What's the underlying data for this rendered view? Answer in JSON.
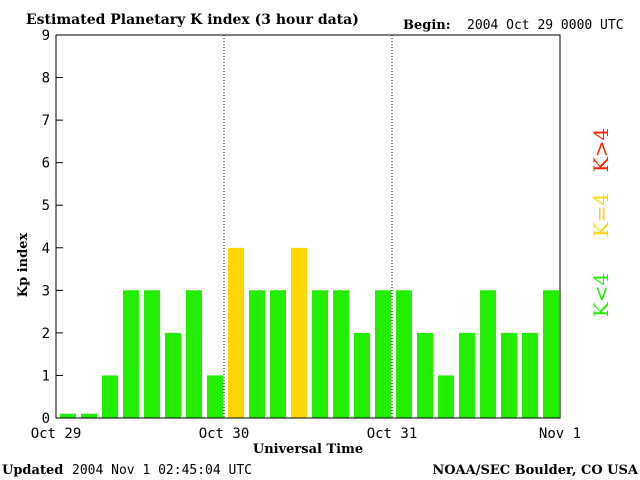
{
  "header": {
    "title": "Estimated Planetary K index (3 hour data)",
    "begin_label": "Begin:",
    "begin_value": "2004 Oct 29 0000 UTC"
  },
  "footer": {
    "updated_label": "Updated",
    "updated_value": "2004 Nov  1 02:45:04 UTC",
    "credit": "NOAA/SEC Boulder, CO USA"
  },
  "legend": {
    "below": "K<4",
    "equal": "K=4",
    "above": "K>4"
  },
  "colors": {
    "below": "#22ee00",
    "equal": "#ffd700",
    "above": "#ff2200",
    "axis": "#000000"
  },
  "chart_data": {
    "type": "bar",
    "xlabel": "Universal Time",
    "ylabel": "Kp index",
    "ylim": [
      0,
      9
    ],
    "yticks": [
      "0",
      "1",
      "2",
      "3",
      "4",
      "5",
      "6",
      "7",
      "8",
      "9"
    ],
    "xticks": [
      "Oct 29",
      "Oct 30",
      "Oct 31",
      "Nov 1"
    ],
    "day_dividers": [
      "Oct 30",
      "Oct 31"
    ],
    "grid": false,
    "values": [
      0.1,
      0.1,
      1,
      3,
      3,
      2,
      3,
      1,
      4,
      3,
      3,
      4,
      3,
      3,
      2,
      3,
      3,
      2,
      1,
      2,
      3,
      2,
      2,
      3
    ]
  }
}
